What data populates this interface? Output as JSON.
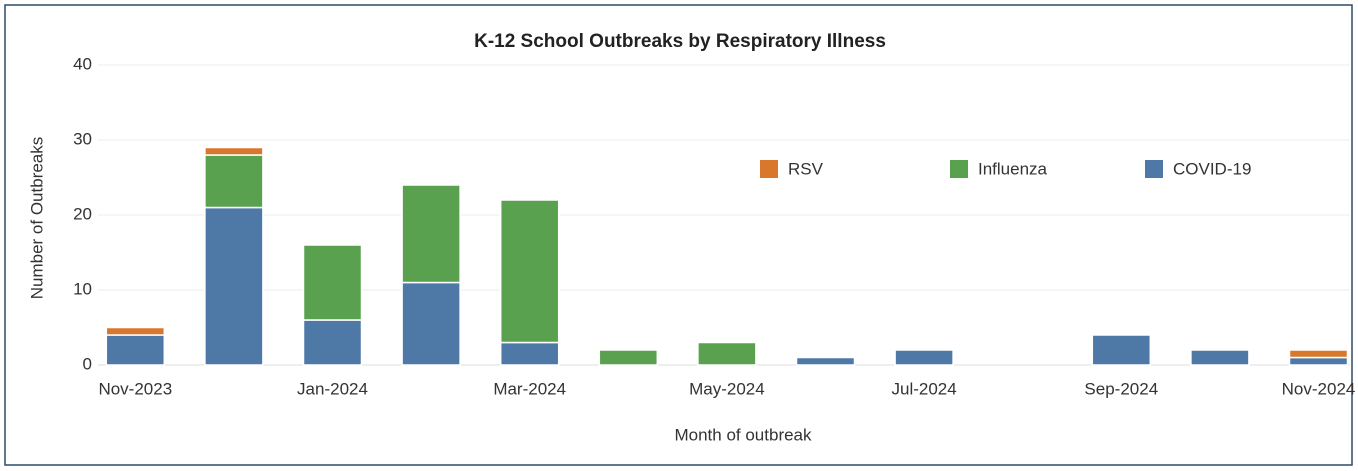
{
  "chart_data": {
    "type": "stacked_bar",
    "title": "K-12 School Outbreaks by Respiratory Illness",
    "x_label": "Month of outbreak",
    "y_label": "Number of Outbreaks",
    "categories": [
      "Nov-2023",
      null,
      "Jan-2024",
      null,
      "Mar-2024",
      null,
      "May-2024",
      null,
      "Jul-2024",
      null,
      "Sep-2024",
      null,
      "Nov-2024"
    ],
    "series": [
      {
        "name": "COVID-19",
        "color": "#4e79a7",
        "values": [
          4,
          21,
          6,
          11,
          3,
          0,
          0,
          1,
          2,
          0,
          4,
          2,
          1
        ]
      },
      {
        "name": "Influenza",
        "color": "#59a14f",
        "values": [
          0,
          7,
          10,
          13,
          19,
          2,
          3,
          0,
          0,
          0,
          0,
          0,
          0
        ]
      },
      {
        "name": "RSV",
        "color": "#d9782d",
        "values": [
          1,
          1,
          0,
          0,
          0,
          0,
          0,
          0,
          0,
          0,
          0,
          0,
          1
        ]
      }
    ],
    "ylim": [
      0,
      40
    ],
    "yticks": [
      0,
      10,
      20,
      30,
      40
    ],
    "grid": true
  }
}
